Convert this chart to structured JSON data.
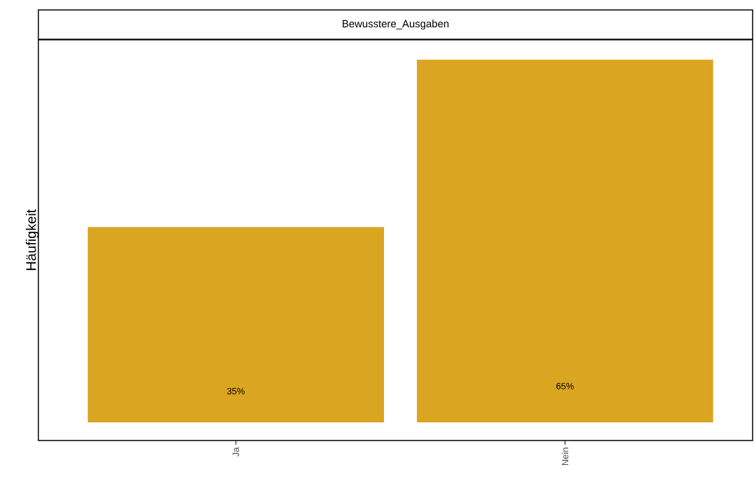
{
  "chart_data": {
    "type": "bar",
    "title": "Bewusstere_Ausgaben",
    "ylabel": "Häufigkeit",
    "categories": [
      "Ja",
      "Nein"
    ],
    "values": [
      35,
      65
    ],
    "color": "#daa520",
    "value_labels": [
      "35%",
      "65%"
    ],
    "tick_labels": "x",
    "grid": false
  }
}
